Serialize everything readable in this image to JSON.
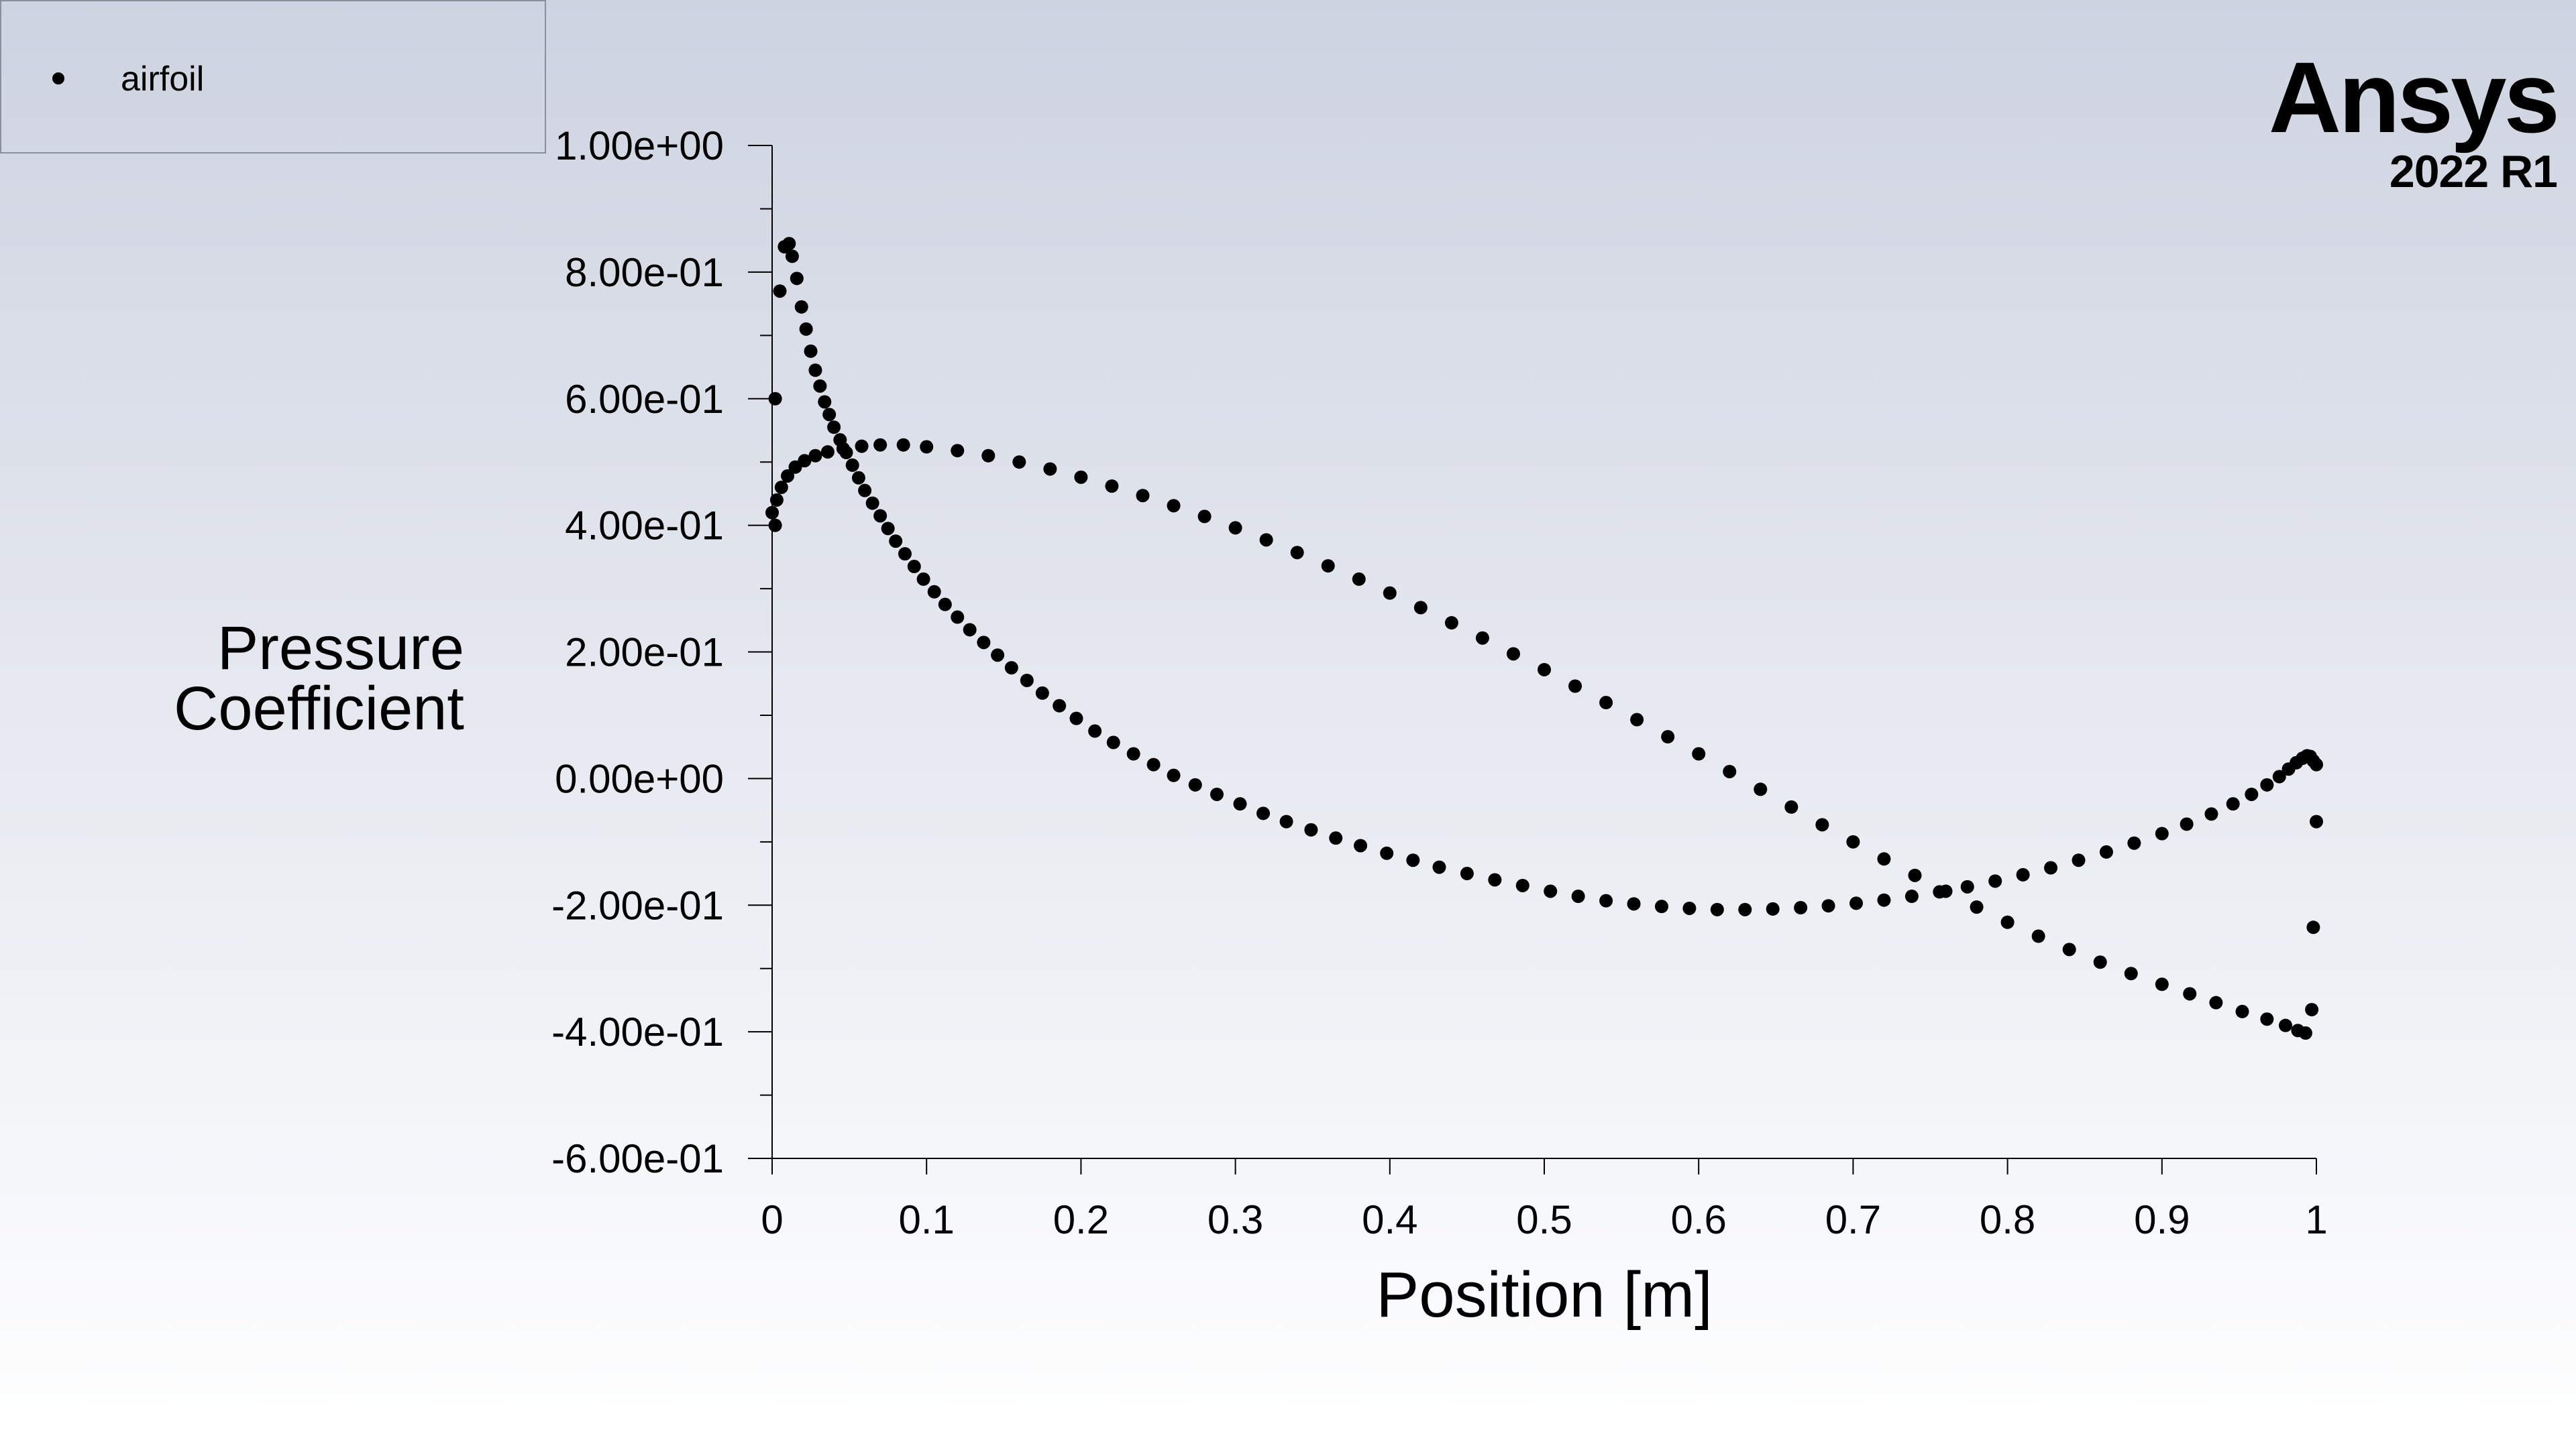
{
  "brand": {
    "name": "Ansys",
    "version": "2022 R1"
  },
  "legend": {
    "entries": [
      "airfoil"
    ],
    "placement": "top-left"
  },
  "colors": {
    "marker": "#000000",
    "axis": "#000000",
    "background_top": "#cdd3e0",
    "background_bottom": "#ffffff"
  },
  "chart_data": {
    "type": "scatter",
    "title": "",
    "xlabel": "Position [m]",
    "ylabel": "Pressure\nCoefficient",
    "xlim": [
      0,
      1
    ],
    "ylim": [
      -0.6,
      1.0
    ],
    "grid": false,
    "x_ticks": [
      "0",
      "0.1",
      "0.2",
      "0.3",
      "0.4",
      "0.5",
      "0.6",
      "0.7",
      "0.8",
      "0.9",
      "1"
    ],
    "y_ticks": [
      "1.00e+00",
      "8.00e-01",
      "6.00e-01",
      "4.00e-01",
      "2.00e-01",
      "0.00e+00",
      "-2.00e-01",
      "-4.00e-01",
      "-6.00e-01"
    ],
    "series": [
      {
        "name": "airfoil",
        "points": [
          [
            0.0,
            0.42
          ],
          [
            0.002,
            0.4
          ],
          [
            0.002,
            0.6
          ],
          [
            0.005,
            0.77
          ],
          [
            0.008,
            0.84
          ],
          [
            0.011,
            0.845
          ],
          [
            0.013,
            0.825
          ],
          [
            0.016,
            0.79
          ],
          [
            0.019,
            0.745
          ],
          [
            0.022,
            0.71
          ],
          [
            0.025,
            0.675
          ],
          [
            0.028,
            0.645
          ],
          [
            0.031,
            0.62
          ],
          [
            0.034,
            0.595
          ],
          [
            0.037,
            0.575
          ],
          [
            0.04,
            0.555
          ],
          [
            0.044,
            0.535
          ],
          [
            0.048,
            0.515
          ],
          [
            0.052,
            0.495
          ],
          [
            0.056,
            0.475
          ],
          [
            0.06,
            0.455
          ],
          [
            0.065,
            0.435
          ],
          [
            0.07,
            0.415
          ],
          [
            0.075,
            0.395
          ],
          [
            0.08,
            0.375
          ],
          [
            0.086,
            0.355
          ],
          [
            0.092,
            0.335
          ],
          [
            0.098,
            0.315
          ],
          [
            0.105,
            0.295
          ],
          [
            0.112,
            0.275
          ],
          [
            0.12,
            0.255
          ],
          [
            0.128,
            0.235
          ],
          [
            0.137,
            0.215
          ],
          [
            0.146,
            0.195
          ],
          [
            0.155,
            0.175
          ],
          [
            0.165,
            0.155
          ],
          [
            0.175,
            0.135
          ],
          [
            0.186,
            0.115
          ],
          [
            0.197,
            0.095
          ],
          [
            0.209,
            0.075
          ],
          [
            0.221,
            0.057
          ],
          [
            0.234,
            0.039
          ],
          [
            0.247,
            0.022
          ],
          [
            0.26,
            0.005
          ],
          [
            0.274,
            -0.01
          ],
          [
            0.288,
            -0.025
          ],
          [
            0.303,
            -0.04
          ],
          [
            0.318,
            -0.055
          ],
          [
            0.333,
            -0.068
          ],
          [
            0.349,
            -0.081
          ],
          [
            0.365,
            -0.094
          ],
          [
            0.381,
            -0.106
          ],
          [
            0.398,
            -0.118
          ],
          [
            0.415,
            -0.129
          ],
          [
            0.432,
            -0.14
          ],
          [
            0.45,
            -0.15
          ],
          [
            0.468,
            -0.16
          ],
          [
            0.486,
            -0.169
          ],
          [
            0.504,
            -0.178
          ],
          [
            0.522,
            -0.186
          ],
          [
            0.54,
            -0.193
          ],
          [
            0.558,
            -0.198
          ],
          [
            0.576,
            -0.202
          ],
          [
            0.594,
            -0.205
          ],
          [
            0.612,
            -0.207
          ],
          [
            0.63,
            -0.207
          ],
          [
            0.648,
            -0.206
          ],
          [
            0.666,
            -0.204
          ],
          [
            0.684,
            -0.201
          ],
          [
            0.702,
            -0.197
          ],
          [
            0.72,
            -0.192
          ],
          [
            0.738,
            -0.186
          ],
          [
            0.756,
            -0.179
          ],
          [
            0.774,
            -0.171
          ],
          [
            0.792,
            -0.162
          ],
          [
            0.81,
            -0.152
          ],
          [
            0.828,
            -0.141
          ],
          [
            0.846,
            -0.129
          ],
          [
            0.864,
            -0.116
          ],
          [
            0.882,
            -0.102
          ],
          [
            0.9,
            -0.087
          ],
          [
            0.916,
            -0.072
          ],
          [
            0.932,
            -0.056
          ],
          [
            0.946,
            -0.04
          ],
          [
            0.958,
            -0.025
          ],
          [
            0.968,
            -0.01
          ],
          [
            0.976,
            0.003
          ],
          [
            0.982,
            0.015
          ],
          [
            0.987,
            0.025
          ],
          [
            0.991,
            0.032
          ],
          [
            0.994,
            0.036
          ],
          [
            0.996,
            0.035
          ],
          [
            0.998,
            0.028
          ],
          [
            1.0,
            0.022
          ],
          [
            1.0,
            -0.068
          ],
          [
            0.998,
            -0.235
          ],
          [
            0.997,
            -0.365
          ],
          [
            0.993,
            -0.402
          ],
          [
            0.988,
            -0.398
          ],
          [
            0.98,
            -0.39
          ],
          [
            0.968,
            -0.38
          ],
          [
            0.952,
            -0.368
          ],
          [
            0.935,
            -0.354
          ],
          [
            0.918,
            -0.34
          ],
          [
            0.9,
            -0.325
          ],
          [
            0.88,
            -0.308
          ],
          [
            0.86,
            -0.29
          ],
          [
            0.84,
            -0.27
          ],
          [
            0.82,
            -0.249
          ],
          [
            0.8,
            -0.227
          ],
          [
            0.78,
            -0.203
          ],
          [
            0.76,
            -0.178
          ],
          [
            0.74,
            -0.153
          ],
          [
            0.72,
            -0.127
          ],
          [
            0.7,
            -0.1
          ],
          [
            0.68,
            -0.073
          ],
          [
            0.66,
            -0.045
          ],
          [
            0.64,
            -0.017
          ],
          [
            0.62,
            0.011
          ],
          [
            0.6,
            0.039
          ],
          [
            0.58,
            0.066
          ],
          [
            0.56,
            0.093
          ],
          [
            0.54,
            0.12
          ],
          [
            0.52,
            0.146
          ],
          [
            0.5,
            0.172
          ],
          [
            0.48,
            0.197
          ],
          [
            0.46,
            0.222
          ],
          [
            0.44,
            0.246
          ],
          [
            0.42,
            0.27
          ],
          [
            0.4,
            0.293
          ],
          [
            0.38,
            0.315
          ],
          [
            0.36,
            0.336
          ],
          [
            0.34,
            0.357
          ],
          [
            0.32,
            0.377
          ],
          [
            0.3,
            0.396
          ],
          [
            0.28,
            0.414
          ],
          [
            0.26,
            0.431
          ],
          [
            0.24,
            0.447
          ],
          [
            0.22,
            0.462
          ],
          [
            0.2,
            0.476
          ],
          [
            0.18,
            0.489
          ],
          [
            0.16,
            0.5
          ],
          [
            0.14,
            0.51
          ],
          [
            0.12,
            0.518
          ],
          [
            0.1,
            0.524
          ],
          [
            0.085,
            0.527
          ],
          [
            0.07,
            0.527
          ],
          [
            0.058,
            0.525
          ],
          [
            0.046,
            0.521
          ],
          [
            0.036,
            0.516
          ],
          [
            0.028,
            0.51
          ],
          [
            0.021,
            0.502
          ],
          [
            0.015,
            0.492
          ],
          [
            0.01,
            0.478
          ],
          [
            0.006,
            0.46
          ],
          [
            0.003,
            0.44
          ]
        ]
      }
    ]
  }
}
